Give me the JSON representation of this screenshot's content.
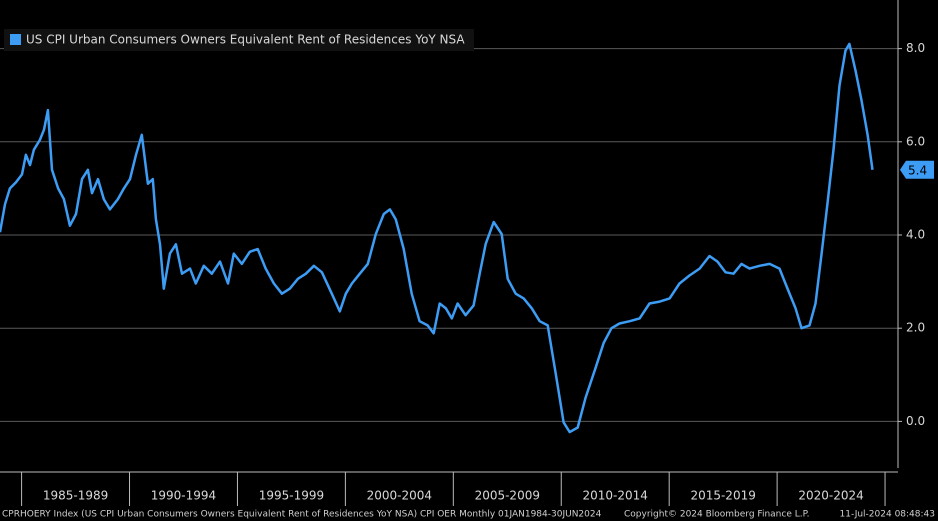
{
  "chart_data": {
    "type": "line",
    "series": [
      {
        "name": "US CPI Urban Consumers Owners Equivalent Rent of Residences YoY NSA",
        "color": "#3d9df5",
        "x": [
          1984.0,
          1984.23,
          1984.46,
          1984.74,
          1985.02,
          1985.2,
          1985.39,
          1985.57,
          1985.85,
          1986.04,
          1986.22,
          1986.41,
          1986.69,
          1986.96,
          1987.24,
          1987.52,
          1987.8,
          1988.07,
          1988.26,
          1988.54,
          1988.81,
          1989.09,
          1989.46,
          1989.74,
          1990.02,
          1990.3,
          1990.57,
          1990.85,
          1991.08,
          1991.22,
          1991.41,
          1991.59,
          1991.87,
          1992.15,
          1992.43,
          1992.8,
          1993.07,
          1993.44,
          1993.81,
          1994.19,
          1994.56,
          1994.83,
          1995.2,
          1995.57,
          1995.94,
          1996.31,
          1996.69,
          1997.06,
          1997.43,
          1997.8,
          1998.17,
          1998.54,
          1998.91,
          1999.37,
          1999.74,
          2000.02,
          2000.3,
          2000.67,
          2001.04,
          2001.41,
          2001.78,
          2002.06,
          2002.33,
          2002.7,
          2003.07,
          2003.44,
          2003.81,
          2004.09,
          2004.37,
          2004.65,
          2004.93,
          2005.2,
          2005.57,
          2005.94,
          2006.22,
          2006.5,
          2006.87,
          2007.24,
          2007.52,
          2007.89,
          2008.26,
          2008.63,
          2009.0,
          2009.37,
          2009.74,
          2010.11,
          2010.39,
          2010.76,
          2011.13,
          2011.59,
          2011.96,
          2012.33,
          2012.7,
          2013.17,
          2013.63,
          2014.09,
          2014.56,
          2015.02,
          2015.48,
          2015.94,
          2016.41,
          2016.87,
          2017.24,
          2017.61,
          2017.98,
          2018.35,
          2018.72,
          2019.19,
          2019.65,
          2020.11,
          2020.48,
          2020.85,
          2021.13,
          2021.5,
          2021.78,
          2022.06,
          2022.33,
          2022.61,
          2022.89,
          2023.17,
          2023.35,
          2023.63,
          2023.91,
          2024.19,
          2024.42
        ],
        "values": [
          4.06,
          4.66,
          5.0,
          5.13,
          5.3,
          5.72,
          5.5,
          5.83,
          6.04,
          6.26,
          6.68,
          5.4,
          5.0,
          4.77,
          4.2,
          4.45,
          5.2,
          5.4,
          4.9,
          5.2,
          4.77,
          4.55,
          4.77,
          5.0,
          5.2,
          5.72,
          6.15,
          5.1,
          5.2,
          4.34,
          3.8,
          2.85,
          3.6,
          3.8,
          3.17,
          3.28,
          2.96,
          3.34,
          3.17,
          3.43,
          2.96,
          3.6,
          3.38,
          3.64,
          3.7,
          3.28,
          2.96,
          2.74,
          2.85,
          3.06,
          3.17,
          3.34,
          3.2,
          2.74,
          2.36,
          2.74,
          2.96,
          3.17,
          3.38,
          4.02,
          4.45,
          4.55,
          4.34,
          3.7,
          2.74,
          2.15,
          2.06,
          1.89,
          2.53,
          2.43,
          2.21,
          2.53,
          2.28,
          2.49,
          3.17,
          3.81,
          4.28,
          4.02,
          3.06,
          2.74,
          2.64,
          2.43,
          2.15,
          2.06,
          1.04,
          -0.02,
          -0.23,
          -0.13,
          0.51,
          1.15,
          1.68,
          2.0,
          2.1,
          2.15,
          2.21,
          2.53,
          2.57,
          2.64,
          2.96,
          3.13,
          3.28,
          3.55,
          3.43,
          3.2,
          3.17,
          3.38,
          3.28,
          3.34,
          3.38,
          3.28,
          2.85,
          2.43,
          2.0,
          2.06,
          2.53,
          3.6,
          4.66,
          5.83,
          7.21,
          7.96,
          8.1,
          7.53,
          6.89,
          6.15,
          5.4
        ]
      }
    ],
    "xlim": [
      1984.0,
      2025.6
    ],
    "xbounds": [
      1985,
      1990,
      1995,
      2000,
      2005,
      2010,
      2015,
      2020,
      2025
    ],
    "xticks": [
      {
        "value": 1987.5,
        "label": "1985-1989"
      },
      {
        "value": 1992.5,
        "label": "1990-1994"
      },
      {
        "value": 1997.5,
        "label": "1995-1999"
      },
      {
        "value": 2002.5,
        "label": "2000-2004"
      },
      {
        "value": 2007.5,
        "label": "2005-2009"
      },
      {
        "value": 2012.5,
        "label": "2010-2014"
      },
      {
        "value": 2017.5,
        "label": "2015-2019"
      },
      {
        "value": 2022.5,
        "label": "2020-2024"
      }
    ],
    "ylim": [
      -1.0,
      9.0
    ],
    "yticks": [
      {
        "value": 0,
        "label": "0.0"
      },
      {
        "value": 2,
        "label": "2.0"
      },
      {
        "value": 4,
        "label": "4.0"
      },
      {
        "value": 6,
        "label": "6.0"
      },
      {
        "value": 8,
        "label": "8.0"
      }
    ],
    "grid": true,
    "legend": "upper left",
    "footer": {
      "source": "CPRHOERY Index (US CPI Urban Consumers Owners Equivalent Rent of Residences YoY NSA) CPI OER  Monthly 01JAN1984-30JUN2024",
      "copyright": "Copyright© 2024 Bloomberg Finance L.P.",
      "timestamp": "11-Jul-2024 08:48:43"
    }
  }
}
